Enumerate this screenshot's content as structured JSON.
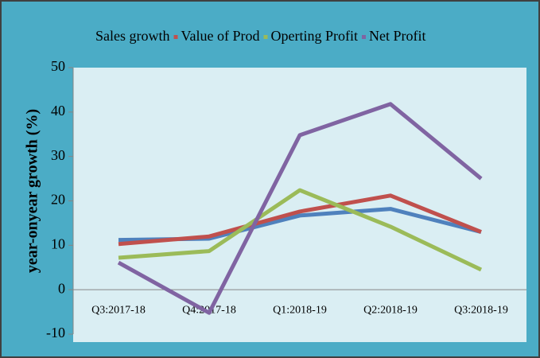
{
  "chart_data": {
    "type": "line",
    "y_axis_label": "year-onyear growth (%)",
    "categories": [
      "Q3:2017-18",
      "Q4:2017-18",
      "Q1:2018-19",
      "Q2:2018-19",
      "Q3:2018-19"
    ],
    "series": [
      {
        "name": "Sales growth",
        "color": "#4f81bd",
        "values": [
          11.2,
          11.5,
          16.7,
          18.2,
          13.0
        ]
      },
      {
        "name": "Value of Prod",
        "color": "#c0504d",
        "values": [
          10.3,
          12.0,
          17.6,
          21.2,
          13.0
        ]
      },
      {
        "name": "Operting Profit",
        "color": "#9bbb59",
        "values": [
          7.2,
          8.7,
          22.4,
          14.2,
          4.5
        ]
      },
      {
        "name": "Net Profit",
        "color": "#8064a2",
        "values": [
          6.1,
          -5.2,
          34.8,
          41.8,
          25.0
        ]
      }
    ],
    "ylim": [
      -10,
      50
    ],
    "yticks": [
      -10,
      0,
      10,
      20,
      30,
      40,
      50
    ],
    "legend": "top"
  }
}
